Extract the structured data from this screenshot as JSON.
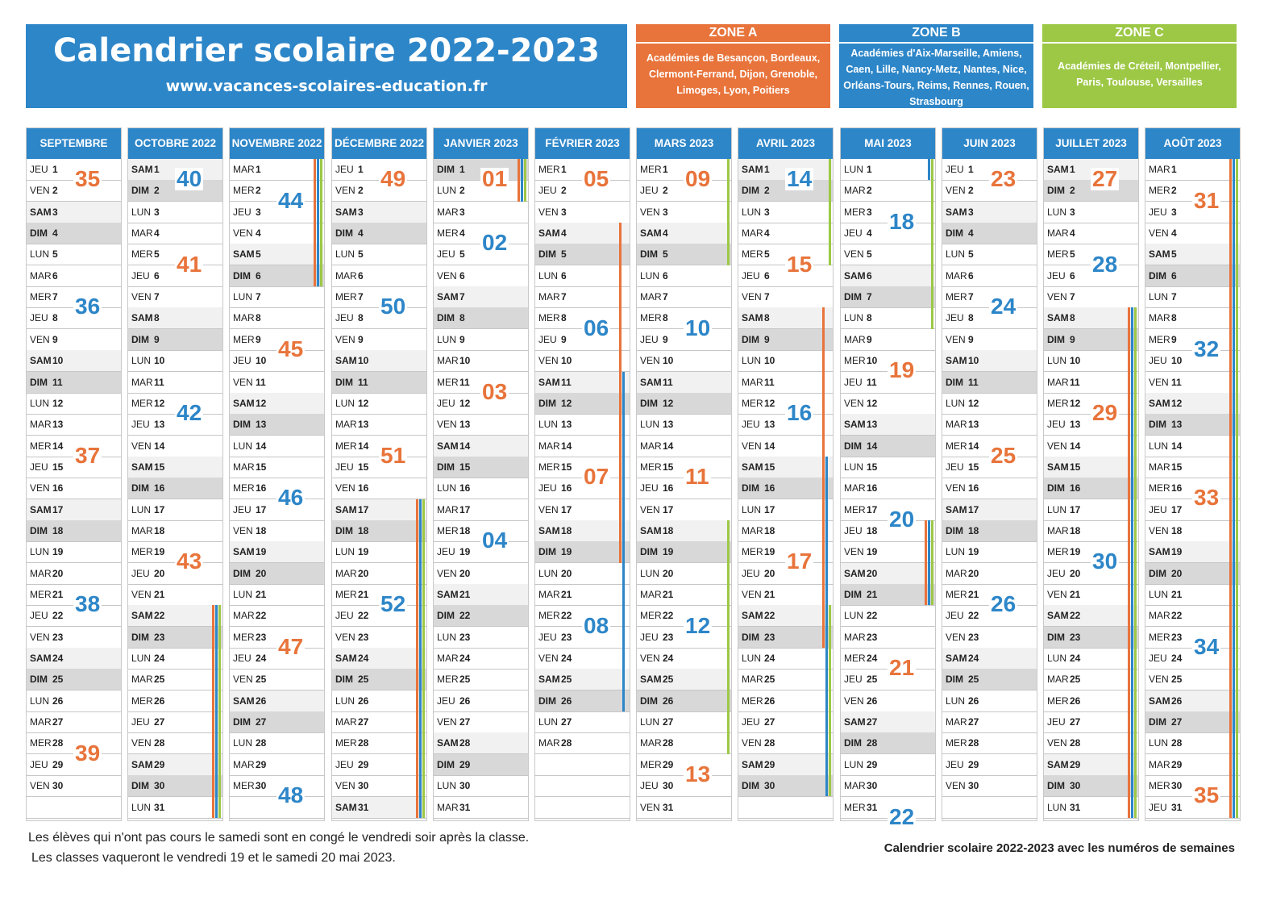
{
  "title": "Calendrier scolaire 2022-2023",
  "url": "www.vacances-scolaires-education.fr",
  "zones": [
    {
      "name": "ZONE A",
      "academies": "Académies de Besançon, Bordeaux, Clermont-Ferrand, Dijon, Grenoble, Limoges, Lyon, Poitiers",
      "color": "#e8743b"
    },
    {
      "name": "ZONE B",
      "academies": "Académies d'Aix-Marseille, Amiens, Caen, Lille, Nancy-Metz, Nantes, Nice, Orléans-Tours, Reims, Rennes, Rouen, Strasbourg",
      "color": "#2d86c8"
    },
    {
      "name": "ZONE C",
      "academies": "Académies de Créteil, Montpellier, Paris, Toulouse, Versailles",
      "color": "#9dc846"
    }
  ],
  "colors": {
    "zoneA": "#e8743b",
    "zoneB": "#2d86c8",
    "zoneC": "#9dc846",
    "week_even": "#2d86c8",
    "week_odd": "#e8743b"
  },
  "months": [
    {
      "name": "SEPTEMBRE 2022",
      "days": 30,
      "start": "JEU"
    },
    {
      "name": "OCTOBRE 2022",
      "days": 31,
      "start": "SAM"
    },
    {
      "name": "NOVEMBRE 2022",
      "days": 30,
      "start": "MAR"
    },
    {
      "name": "DÉCEMBRE 2022",
      "days": 31,
      "start": "JEU"
    },
    {
      "name": "JANVIER 2023",
      "days": 31,
      "start": "DIM"
    },
    {
      "name": "FÉVRIER 2023",
      "days": 28,
      "start": "MER"
    },
    {
      "name": "MARS 2023",
      "days": 31,
      "start": "MER"
    },
    {
      "name": "AVRIL 2023",
      "days": 30,
      "start": "SAM"
    },
    {
      "name": "MAI 2023",
      "days": 31,
      "start": "LUN"
    },
    {
      "name": "JUIN 2023",
      "days": 30,
      "start": "JEU"
    },
    {
      "name": "JUILLET 2023",
      "days": 31,
      "start": "SAM"
    },
    {
      "name": "AOÛT 2023",
      "days": 31,
      "start": "MAR"
    }
  ],
  "day_abbr": [
    "LUN",
    "MAR",
    "MER",
    "JEU",
    "VEN",
    "SAM",
    "DIM"
  ],
  "special_day_labels": [
    {
      "month": 2,
      "day": 30,
      "label": "MER."
    }
  ],
  "week_numbers": [
    [
      "35",
      "36",
      "37",
      "38",
      "39"
    ],
    [
      "40",
      "41",
      "42",
      "43"
    ],
    [
      "44",
      "45",
      "46",
      "47",
      "48"
    ],
    [
      "49",
      "50",
      "51",
      "52"
    ],
    [
      "01",
      "02",
      "03",
      "04"
    ],
    [
      "05",
      "06",
      "07",
      "08"
    ],
    [
      "09",
      "10",
      "11",
      "12",
      "13"
    ],
    [
      "14",
      "15",
      "16",
      "17"
    ],
    [
      "18",
      "19",
      "20",
      "21",
      "22"
    ],
    [
      "23",
      "24",
      "25",
      "26"
    ],
    [
      "27",
      "28",
      "29",
      "30"
    ],
    [
      "31",
      "32",
      "33",
      "34",
      "35"
    ]
  ],
  "holidays": [
    {
      "month": 1,
      "from": 22,
      "to": 31,
      "zones": [
        "A",
        "B",
        "C"
      ]
    },
    {
      "month": 2,
      "from": 1,
      "to": 6,
      "zones": [
        "A",
        "B",
        "C"
      ]
    },
    {
      "month": 3,
      "from": 17,
      "to": 31,
      "zones": [
        "A",
        "B",
        "C"
      ]
    },
    {
      "month": 4,
      "from": 1,
      "to": 2,
      "zones": [
        "A",
        "B",
        "C"
      ]
    },
    {
      "month": 5,
      "from": 4,
      "to": 19,
      "zones": [
        "A"
      ]
    },
    {
      "month": 5,
      "from": 11,
      "to": 26,
      "zones": [
        "B"
      ]
    },
    {
      "month": 6,
      "from": 18,
      "to": 28,
      "zones": [
        "C"
      ]
    },
    {
      "month": 6,
      "from": 1,
      "to": 5,
      "zones": [
        "C"
      ]
    },
    {
      "month": 7,
      "from": 1,
      "to": 5,
      "zones": [
        "C"
      ]
    },
    {
      "month": 7,
      "from": 8,
      "to": 23,
      "zones": [
        "A"
      ]
    },
    {
      "month": 7,
      "from": 15,
      "to": 30,
      "zones": [
        "B"
      ]
    },
    {
      "month": 7,
      "from": 22,
      "to": 30,
      "zones": [
        "C"
      ]
    },
    {
      "month": 8,
      "from": 1,
      "to": 1,
      "zones": [
        "B"
      ]
    },
    {
      "month": 8,
      "from": 1,
      "to": 8,
      "zones": [
        "C"
      ]
    },
    {
      "month": 8,
      "from": 18,
      "to": 21,
      "zones": [
        "A",
        "B",
        "C"
      ]
    },
    {
      "month": 10,
      "from": 8,
      "to": 31,
      "zones": [
        "A",
        "B",
        "C"
      ]
    },
    {
      "month": 11,
      "from": 1,
      "to": 31,
      "zones": [
        "A",
        "B",
        "C"
      ]
    }
  ],
  "footer": {
    "note1": "Les élèves qui n'ont pas cours le samedi sont en congé le vendredi soir après la classe.",
    "note2": "Les classes vaqueront le vendredi 19 et le samedi 20 mai 2023.",
    "caption": "Calendrier scolaire 2022-2023 avec les numéros de semaines"
  }
}
